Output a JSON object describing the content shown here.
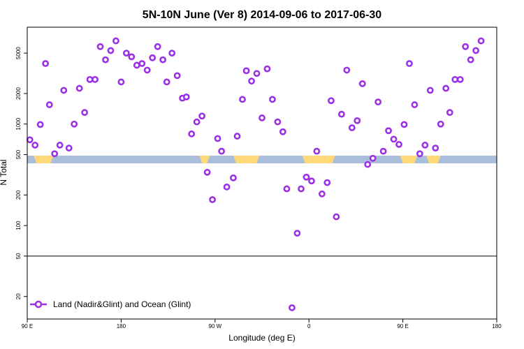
{
  "chart_data": {
    "type": "scatter",
    "title": "5N-10N June (Ver 8)   2014-09-06 to 2017-06-30",
    "xlabel": "Longitude (deg E)",
    "ylabel": "N Total",
    "y_scale": "log",
    "ylim": [
      12,
      9000
    ],
    "xlim": [
      90,
      450
    ],
    "x_ticks": [
      {
        "value": 90,
        "label": "90 E"
      },
      {
        "value": 162,
        "label": "180"
      },
      {
        "value": 234,
        "label": "90 W"
      },
      {
        "value": 306,
        "label": "0"
      },
      {
        "value": 378,
        "label": "90 E"
      },
      {
        "value": 450,
        "label": "180"
      }
    ],
    "y_ticks": [
      {
        "value": 20,
        "label": "20"
      },
      {
        "value": 50,
        "label": "50"
      },
      {
        "value": 100,
        "label": "100"
      },
      {
        "value": 200,
        "label": "200"
      },
      {
        "value": 500,
        "label": "500"
      },
      {
        "value": 1000,
        "label": "1000"
      },
      {
        "value": 2000,
        "label": "2000"
      },
      {
        "value": 5000,
        "label": "5000"
      }
    ],
    "reference_line": 50,
    "colors": {
      "marker": "#9b30e6",
      "band": "#a9bedb",
      "land": "#ffd87a",
      "line": "#000000"
    },
    "legend": {
      "position": "bottom-left",
      "label": "Land (Nadir&Glint) and Ocean (Glint)"
    },
    "series": [
      {
        "name": "Land (Nadir&Glint) and Ocean (Glint)",
        "points": [
          [
            92,
            700
          ],
          [
            96,
            620
          ],
          [
            100,
            990
          ],
          [
            104,
            3950
          ],
          [
            107,
            1550
          ],
          [
            111,
            510
          ],
          [
            115,
            620
          ],
          [
            118,
            2150
          ],
          [
            122,
            580
          ],
          [
            126,
            1000
          ],
          [
            130,
            2250
          ],
          [
            134,
            1300
          ],
          [
            138,
            2750
          ],
          [
            142,
            2750
          ],
          [
            146,
            5800
          ],
          [
            150,
            4300
          ],
          [
            154,
            5300
          ],
          [
            158,
            6600
          ],
          [
            162,
            2600
          ],
          [
            166,
            5000
          ],
          [
            170,
            4600
          ],
          [
            174,
            3800
          ],
          [
            178,
            3950
          ],
          [
            182,
            3400
          ],
          [
            186,
            4500
          ],
          [
            190,
            5800
          ],
          [
            194,
            4300
          ],
          [
            197,
            2600
          ],
          [
            201,
            5000
          ],
          [
            205,
            3000
          ],
          [
            209,
            1800
          ],
          [
            212,
            1850
          ],
          [
            216,
            800
          ],
          [
            220,
            1050
          ],
          [
            224,
            1200
          ],
          [
            228,
            335
          ],
          [
            232,
            180
          ],
          [
            236,
            720
          ],
          [
            239,
            540
          ],
          [
            243,
            240
          ],
          [
            248,
            295
          ],
          [
            251,
            760
          ],
          [
            255,
            1750
          ],
          [
            258,
            3350
          ],
          [
            262,
            2650
          ],
          [
            266,
            3150
          ],
          [
            270,
            1150
          ],
          [
            274,
            3500
          ],
          [
            278,
            1750
          ],
          [
            282,
            1050
          ],
          [
            286,
            840
          ],
          [
            289,
            230
          ],
          [
            293,
            15.5
          ],
          [
            297,
            84
          ],
          [
            300,
            230
          ],
          [
            304,
            300
          ],
          [
            308,
            275
          ],
          [
            312,
            540
          ],
          [
            316,
            205
          ],
          [
            320,
            265
          ],
          [
            323,
            1700
          ],
          [
            327,
            122
          ],
          [
            331,
            1250
          ],
          [
            335,
            3400
          ],
          [
            339,
            920
          ],
          [
            343,
            1080
          ],
          [
            347,
            2500
          ],
          [
            351,
            400
          ],
          [
            355,
            460
          ],
          [
            359,
            1650
          ],
          [
            363,
            540
          ],
          [
            367,
            860
          ],
          [
            371,
            710
          ],
          [
            375,
            630
          ],
          [
            379,
            990
          ],
          [
            383,
            3950
          ],
          [
            387,
            1550
          ],
          [
            391,
            510
          ],
          [
            395,
            620
          ],
          [
            399,
            2150
          ],
          [
            403,
            580
          ],
          [
            407,
            1000
          ],
          [
            411,
            2250
          ],
          [
            414,
            1300
          ],
          [
            418,
            2750
          ],
          [
            422,
            2750
          ],
          [
            426,
            5800
          ],
          [
            430,
            4300
          ],
          [
            434,
            5300
          ],
          [
            438,
            6600
          ]
        ]
      }
    ]
  }
}
